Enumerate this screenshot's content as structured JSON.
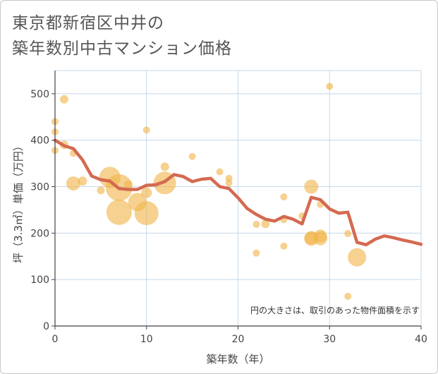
{
  "title_line1": "東京都新宿区中井の",
  "title_line2": "築年数別中古マンション価格",
  "chart_data": {
    "type": "scatter",
    "xlabel": "築年数（年）",
    "ylabel": "坪（3.3㎡）単価（万円）",
    "xlim": [
      0,
      40
    ],
    "ylim": [
      0,
      550
    ],
    "xticks": [
      0,
      10,
      20,
      30,
      40
    ],
    "yticks": [
      0,
      100,
      200,
      300,
      400,
      500
    ],
    "grid": true,
    "note": "円の大きさは、取引のあった物件面積を示す",
    "colors": {
      "bubble": "#f0b44a",
      "line": "#d46a50",
      "grid": "#c5d8ea",
      "axis": "#444444"
    },
    "series": [
      {
        "kind": "bubble",
        "points": [
          {
            "x": 0,
            "y": 440,
            "size": 10
          },
          {
            "x": 0,
            "y": 418,
            "size": 10
          },
          {
            "x": 0,
            "y": 378,
            "size": 10
          },
          {
            "x": 1,
            "y": 488,
            "size": 12
          },
          {
            "x": 1,
            "y": 390,
            "size": 12
          },
          {
            "x": 2,
            "y": 372,
            "size": 10
          },
          {
            "x": 2,
            "y": 307,
            "size": 20
          },
          {
            "x": 3,
            "y": 312,
            "size": 13
          },
          {
            "x": 5,
            "y": 292,
            "size": 11
          },
          {
            "x": 6,
            "y": 320,
            "size": 30
          },
          {
            "x": 7,
            "y": 298,
            "size": 38
          },
          {
            "x": 7,
            "y": 245,
            "size": 36
          },
          {
            "x": 8,
            "y": 305,
            "size": 12
          },
          {
            "x": 9,
            "y": 267,
            "size": 26
          },
          {
            "x": 10,
            "y": 287,
            "size": 15
          },
          {
            "x": 10,
            "y": 243,
            "size": 34
          },
          {
            "x": 10,
            "y": 422,
            "size": 10
          },
          {
            "x": 12,
            "y": 343,
            "size": 12
          },
          {
            "x": 12,
            "y": 308,
            "size": 32
          },
          {
            "x": 15,
            "y": 365,
            "size": 10
          },
          {
            "x": 18,
            "y": 332,
            "size": 10
          },
          {
            "x": 19,
            "y": 318,
            "size": 10
          },
          {
            "x": 19,
            "y": 308,
            "size": 10
          },
          {
            "x": 22,
            "y": 157,
            "size": 10
          },
          {
            "x": 22,
            "y": 219,
            "size": 10
          },
          {
            "x": 23,
            "y": 220,
            "size": 12
          },
          {
            "x": 25,
            "y": 278,
            "size": 10
          },
          {
            "x": 25,
            "y": 229,
            "size": 10
          },
          {
            "x": 25,
            "y": 172,
            "size": 10
          },
          {
            "x": 27,
            "y": 237,
            "size": 10
          },
          {
            "x": 28,
            "y": 300,
            "size": 20
          },
          {
            "x": 28,
            "y": 190,
            "size": 19
          },
          {
            "x": 28,
            "y": 188,
            "size": 20
          },
          {
            "x": 29,
            "y": 262,
            "size": 10
          },
          {
            "x": 29,
            "y": 194,
            "size": 18
          },
          {
            "x": 29,
            "y": 189,
            "size": 20
          },
          {
            "x": 30,
            "y": 516,
            "size": 10
          },
          {
            "x": 32,
            "y": 199,
            "size": 10
          },
          {
            "x": 32,
            "y": 64,
            "size": 10
          },
          {
            "x": 33,
            "y": 148,
            "size": 26
          }
        ]
      },
      {
        "kind": "line",
        "points": [
          {
            "x": 0,
            "y": 400
          },
          {
            "x": 1,
            "y": 388
          },
          {
            "x": 2,
            "y": 382
          },
          {
            "x": 3,
            "y": 358
          },
          {
            "x": 4,
            "y": 323
          },
          {
            "x": 5,
            "y": 315
          },
          {
            "x": 6,
            "y": 312
          },
          {
            "x": 7,
            "y": 296
          },
          {
            "x": 8,
            "y": 294
          },
          {
            "x": 9,
            "y": 294
          },
          {
            "x": 10,
            "y": 303
          },
          {
            "x": 11,
            "y": 304
          },
          {
            "x": 12,
            "y": 311
          },
          {
            "x": 13,
            "y": 326
          },
          {
            "x": 14,
            "y": 322
          },
          {
            "x": 15,
            "y": 311
          },
          {
            "x": 16,
            "y": 316
          },
          {
            "x": 17,
            "y": 318
          },
          {
            "x": 18,
            "y": 300
          },
          {
            "x": 19,
            "y": 296
          },
          {
            "x": 20,
            "y": 276
          },
          {
            "x": 21,
            "y": 253
          },
          {
            "x": 22,
            "y": 240
          },
          {
            "x": 23,
            "y": 230
          },
          {
            "x": 24,
            "y": 226
          },
          {
            "x": 25,
            "y": 236
          },
          {
            "x": 26,
            "y": 230
          },
          {
            "x": 27,
            "y": 220
          },
          {
            "x": 28,
            "y": 277
          },
          {
            "x": 29,
            "y": 272
          },
          {
            "x": 30,
            "y": 252
          },
          {
            "x": 31,
            "y": 243
          },
          {
            "x": 32,
            "y": 245
          },
          {
            "x": 33,
            "y": 180
          },
          {
            "x": 34,
            "y": 175
          },
          {
            "x": 35,
            "y": 187
          },
          {
            "x": 36,
            "y": 194
          },
          {
            "x": 37,
            "y": 190
          },
          {
            "x": 38,
            "y": 185
          },
          {
            "x": 39,
            "y": 181
          },
          {
            "x": 40,
            "y": 176
          }
        ]
      }
    ]
  }
}
